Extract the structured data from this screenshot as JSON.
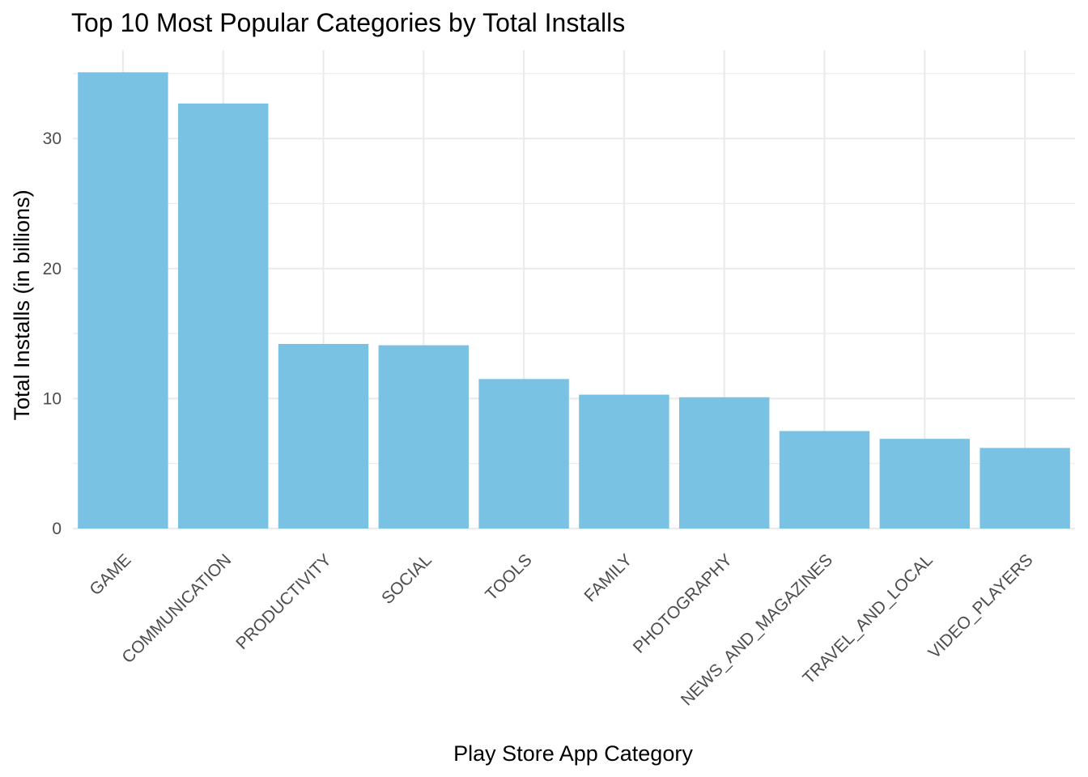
{
  "chart_data": {
    "type": "bar",
    "title": "Top 10 Most Popular Categories by Total Installs",
    "xlabel": "Play Store App Category",
    "ylabel": "Total Installs (in billions)",
    "categories": [
      "GAME",
      "COMMUNICATION",
      "PRODUCTIVITY",
      "SOCIAL",
      "TOOLS",
      "FAMILY",
      "PHOTOGRAPHY",
      "NEWS_AND_MAGAZINES",
      "TRAVEL_AND_LOCAL",
      "VIDEO_PLAYERS"
    ],
    "values": [
      35.1,
      32.7,
      14.2,
      14.1,
      11.5,
      10.3,
      10.1,
      7.5,
      6.9,
      6.2
    ],
    "ylim": [
      0,
      36.8
    ],
    "yticks": [
      0,
      10,
      20,
      30
    ],
    "yticks_labels": [
      "0",
      "10",
      "20",
      "30"
    ],
    "grid": true,
    "legend": "none",
    "colors": {
      "bar": "#7AC2E4",
      "grid": "#EBEBEB",
      "tick_label": "#4D4D4D",
      "text": "#000000"
    }
  }
}
